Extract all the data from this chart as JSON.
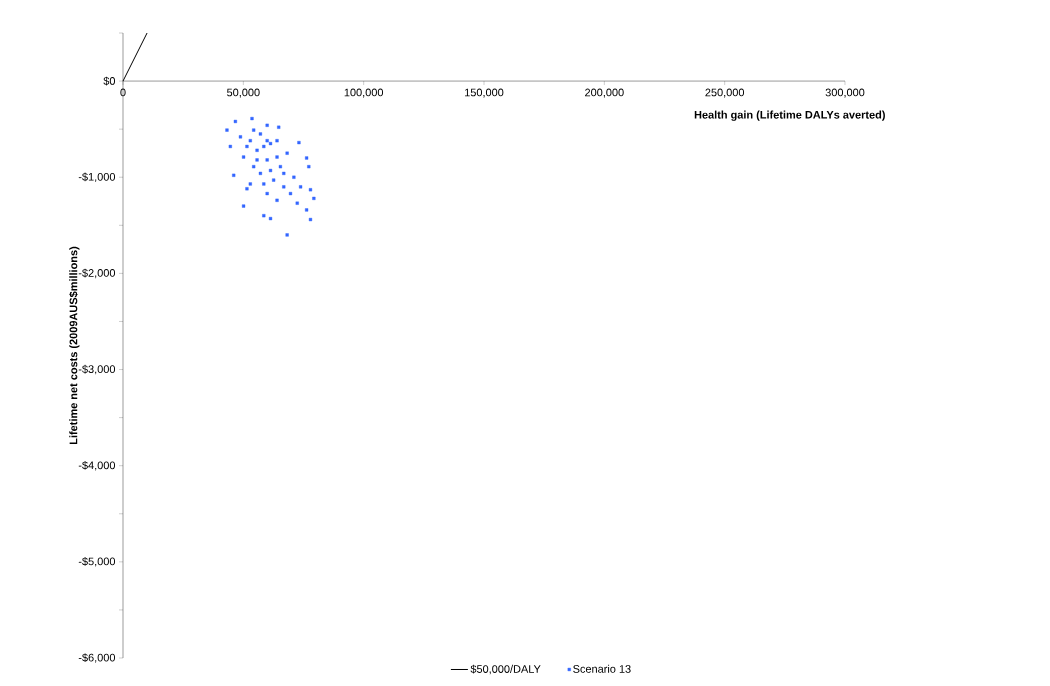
{
  "chart_data": {
    "type": "scatter",
    "xlabel": "Health gain (Lifetime DALYs  averted)",
    "ylabel": "Lifetime net costs  (2009AUS$millions)",
    "xlim": [
      0,
      300000
    ],
    "ylim": [
      -6000,
      500
    ],
    "xticks": [
      {
        "value": 0,
        "label": "0"
      },
      {
        "value": 50000,
        "label": "50,000"
      },
      {
        "value": 100000,
        "label": "100,000"
      },
      {
        "value": 150000,
        "label": "150,000"
      },
      {
        "value": 200000,
        "label": "200,000"
      },
      {
        "value": 250000,
        "label": "250,000"
      },
      {
        "value": 300000,
        "label": "300,000"
      }
    ],
    "yticks": [
      {
        "value": 500,
        "label": null
      },
      {
        "value": 0,
        "label": "$0"
      },
      {
        "value": -500,
        "label": null
      },
      {
        "value": -1000,
        "label": "-$1,000"
      },
      {
        "value": -1500,
        "label": null
      },
      {
        "value": -2000,
        "label": "-$2,000"
      },
      {
        "value": -2500,
        "label": null
      },
      {
        "value": -3000,
        "label": "-$3,000"
      },
      {
        "value": -3500,
        "label": null
      },
      {
        "value": -4000,
        "label": "-$4,000"
      },
      {
        "value": -4500,
        "label": null
      },
      {
        "value": -5000,
        "label": "-$5,000"
      },
      {
        "value": -5500,
        "label": null
      },
      {
        "value": -6000,
        "label": "-$6,000"
      }
    ],
    "legend": "bottom",
    "grid": false,
    "series": [
      {
        "name": "$50,000/DALY",
        "type": "line",
        "color": "#000000",
        "marker": "none",
        "x": [
          0,
          10000
        ],
        "values": [
          0,
          500
        ]
      },
      {
        "name": "Scenario 13",
        "type": "scatter",
        "color": "#3366ff",
        "marker": "square",
        "x": [
          53600,
          46700,
          43200,
          44600,
          46000,
          51500,
          50100,
          58500,
          61300,
          68200,
          77900,
          76300,
          79300,
          77900,
          77200,
          76300,
          73100,
          64700,
          59900,
          55700,
          59900,
          52900,
          57100,
          62600,
          66800,
          50100,
          54300,
          61300,
          65400,
          69600,
          72400,
          64000,
          59900,
          48800,
          57100,
          68200,
          71000,
          73800,
          52900,
          58500,
          55700,
          61300,
          64000,
          58500,
          51500,
          66800,
          59900,
          54300,
          64000
        ],
        "values": [
          -390,
          -420,
          -510,
          -680,
          -980,
          -1120,
          -1300,
          -1400,
          -1430,
          -1600,
          -1440,
          -1340,
          -1220,
          -1130,
          -890,
          -800,
          -640,
          -480,
          -460,
          -720,
          -820,
          -620,
          -960,
          -1030,
          -1100,
          -790,
          -890,
          -650,
          -890,
          -1170,
          -1270,
          -1240,
          -1170,
          -580,
          -550,
          -750,
          -1000,
          -1100,
          -1070,
          -680,
          -820,
          -930,
          -790,
          -1070,
          -680,
          -960,
          -620,
          -510,
          -620
        ]
      }
    ]
  }
}
